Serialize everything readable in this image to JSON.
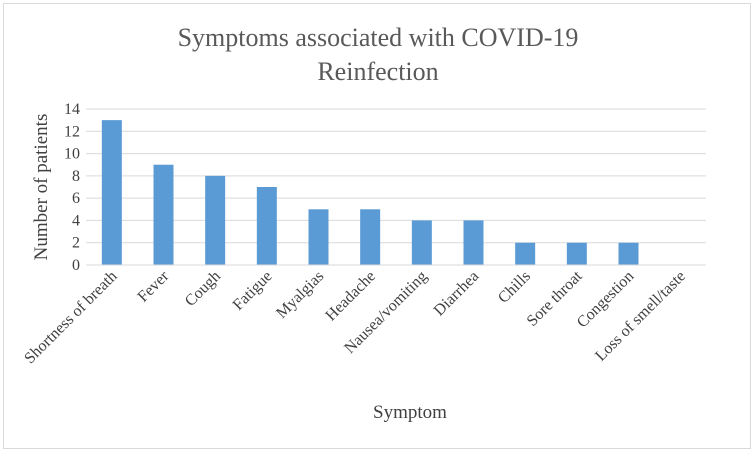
{
  "chart_data": {
    "type": "bar",
    "title": [
      "Symptoms associated with COVID-19",
      "Reinfection"
    ],
    "xlabel": "Symptom",
    "ylabel": "Number of patients",
    "categories": [
      "Shortness of breath",
      "Fever",
      "Cough",
      "Fatigue",
      "Myalgias",
      "Headache",
      "Nausea/vomiting",
      "Diarrhea",
      "Chills",
      "Sore throat",
      "Congestion",
      "Loss of smell/taste"
    ],
    "values": [
      13,
      9,
      8,
      7,
      5,
      5,
      4,
      4,
      2,
      2,
      2,
      0
    ],
    "ylim": [
      0,
      14
    ],
    "yticks": [
      0,
      2,
      4,
      6,
      8,
      10,
      12,
      14
    ],
    "grid": true,
    "legend": "none",
    "colors": {
      "bar": "#5b9bd5",
      "grid": "#d9d9d9",
      "text": "#404040",
      "title": "#595959"
    }
  }
}
